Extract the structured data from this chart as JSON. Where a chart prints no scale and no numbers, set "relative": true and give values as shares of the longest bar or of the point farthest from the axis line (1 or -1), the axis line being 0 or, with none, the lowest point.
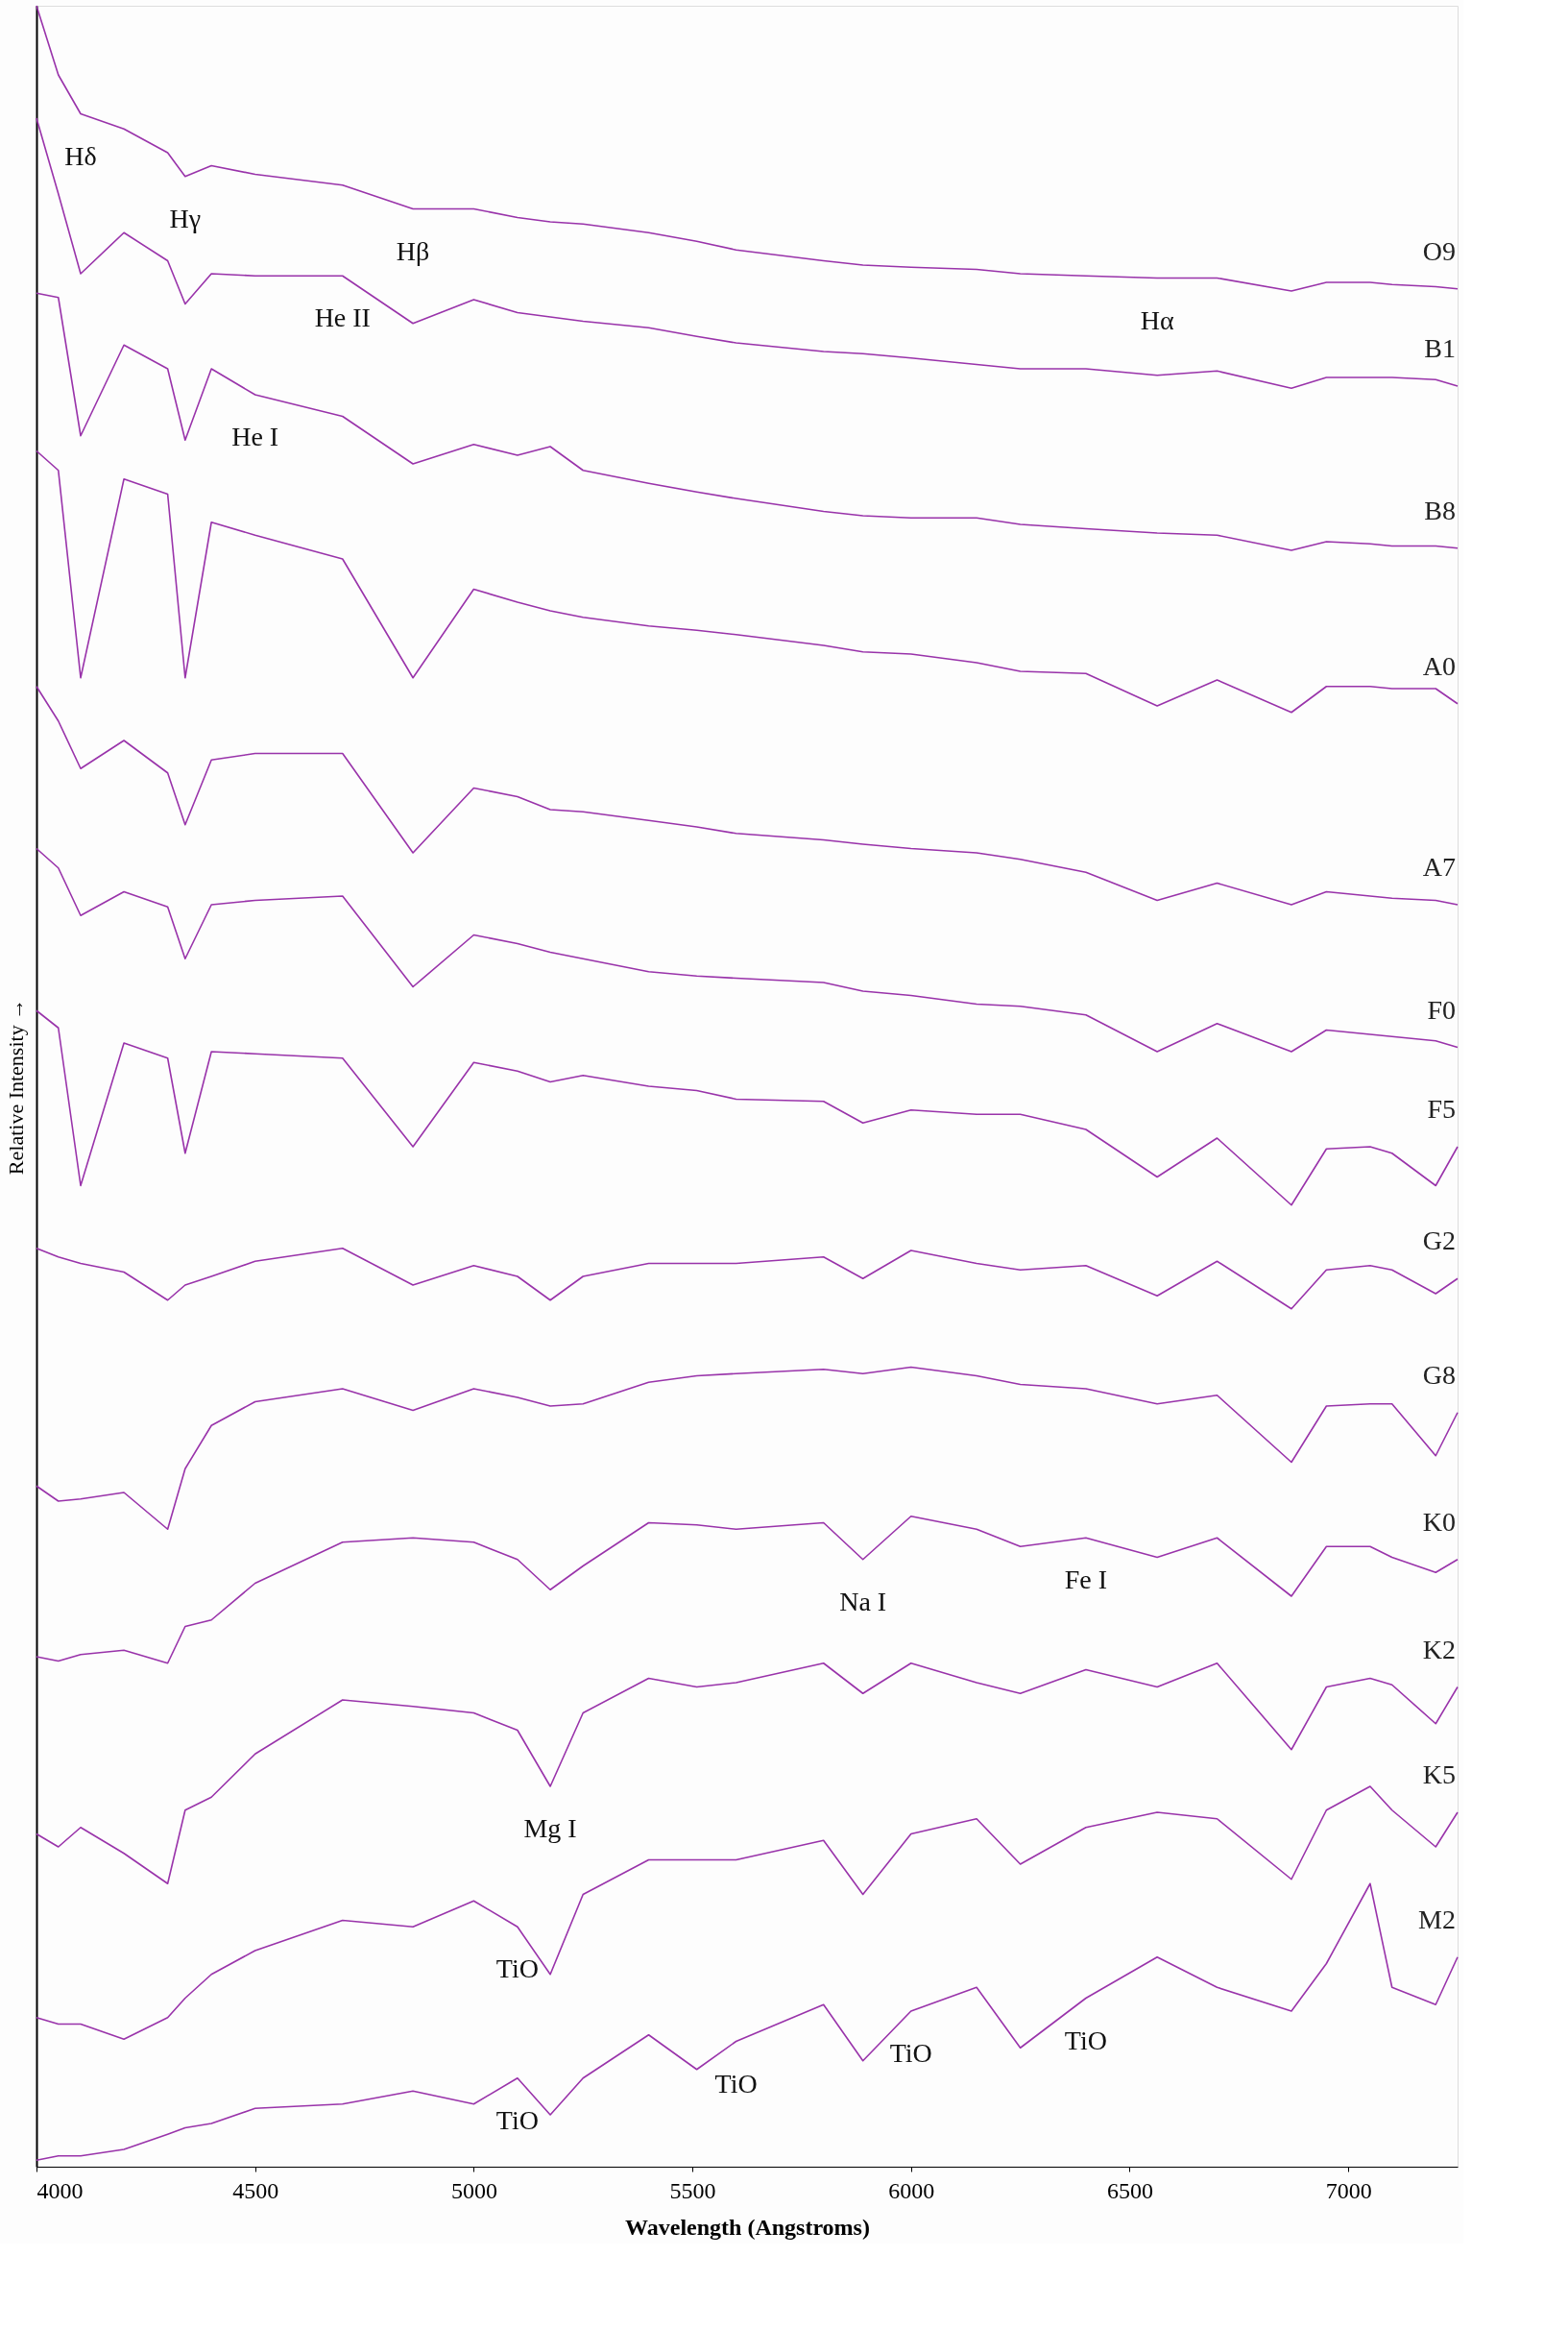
{
  "chart_data": {
    "type": "line",
    "relative": true,
    "xlabel": "Wavelength (Angstroms)",
    "ylabel": "Relative Intensity →",
    "x": [
      4000,
      4050,
      4101,
      4200,
      4300,
      4340,
      4400,
      4500,
      4700,
      4861,
      5000,
      5100,
      5175,
      5250,
      5400,
      5510,
      5600,
      5800,
      5890,
      6000,
      6150,
      6250,
      6400,
      6563,
      6700,
      6870,
      6950,
      7050,
      7100,
      7200,
      7250
    ],
    "xlim": [
      4000,
      7250
    ],
    "xticks": [
      4000,
      4500,
      5000,
      5500,
      6000,
      6500,
      7000
    ],
    "grid": false,
    "legend": false,
    "marker": "none",
    "line_style": "solid",
    "series": [
      {
        "name": "O9",
        "color": "#9933aa",
        "values": [
          1.0,
          0.968,
          0.95,
          0.943,
          0.932,
          0.921,
          0.926,
          0.922,
          0.917,
          0.906,
          0.906,
          0.902,
          0.9,
          0.899,
          0.895,
          0.891,
          0.887,
          0.882,
          0.88,
          0.879,
          0.878,
          0.876,
          0.875,
          0.874,
          0.874,
          0.868,
          0.872,
          0.872,
          0.871,
          0.87,
          0.869
        ]
      },
      {
        "name": "B1",
        "color": "#9933aa",
        "values": [
          0.948,
          0.913,
          0.876,
          0.895,
          0.882,
          0.862,
          0.876,
          0.875,
          0.875,
          0.853,
          0.864,
          0.858,
          0.856,
          0.854,
          0.851,
          0.847,
          0.844,
          0.84,
          0.839,
          0.837,
          0.834,
          0.832,
          0.832,
          0.829,
          0.831,
          0.823,
          0.828,
          0.828,
          0.828,
          0.827,
          0.824
        ]
      },
      {
        "name": "B8",
        "color": "#9933aa",
        "values": [
          0.867,
          0.865,
          0.801,
          0.843,
          0.832,
          0.799,
          0.832,
          0.82,
          0.81,
          0.788,
          0.797,
          0.792,
          0.796,
          0.785,
          0.779,
          0.775,
          0.772,
          0.766,
          0.764,
          0.763,
          0.763,
          0.76,
          0.758,
          0.756,
          0.755,
          0.748,
          0.752,
          0.751,
          0.75,
          0.75,
          0.749
        ]
      },
      {
        "name": "A0",
        "color": "#9933aa",
        "values": [
          0.794,
          0.785,
          0.689,
          0.781,
          0.774,
          0.689,
          0.761,
          0.755,
          0.744,
          0.689,
          0.73,
          0.724,
          0.72,
          0.717,
          0.713,
          0.711,
          0.709,
          0.704,
          0.701,
          0.7,
          0.696,
          0.692,
          0.691,
          0.676,
          0.688,
          0.673,
          0.685,
          0.685,
          0.684,
          0.684,
          0.677
        ]
      },
      {
        "name": "A7",
        "color": "#9933aa",
        "values": [
          0.685,
          0.669,
          0.647,
          0.66,
          0.645,
          0.621,
          0.651,
          0.654,
          0.654,
          0.608,
          0.638,
          0.634,
          0.628,
          0.627,
          0.623,
          0.62,
          0.617,
          0.614,
          0.612,
          0.61,
          0.608,
          0.605,
          0.599,
          0.586,
          0.594,
          0.584,
          0.59,
          0.588,
          0.587,
          0.586,
          0.584
        ]
      },
      {
        "name": "F0",
        "color": "#9933aa",
        "values": [
          0.61,
          0.601,
          0.579,
          0.59,
          0.583,
          0.559,
          0.584,
          0.586,
          0.588,
          0.546,
          0.57,
          0.566,
          0.562,
          0.559,
          0.553,
          0.551,
          0.55,
          0.548,
          0.544,
          0.542,
          0.538,
          0.537,
          0.533,
          0.516,
          0.529,
          0.516,
          0.526,
          0.524,
          0.523,
          0.521,
          0.518
        ]
      },
      {
        "name": "F5",
        "color": "#9933aa",
        "values": [
          0.535,
          0.527,
          0.454,
          0.52,
          0.513,
          0.469,
          0.516,
          0.515,
          0.513,
          0.472,
          0.511,
          0.507,
          0.502,
          0.505,
          0.5,
          0.498,
          0.494,
          0.493,
          0.483,
          0.489,
          0.487,
          0.487,
          0.48,
          0.458,
          0.476,
          0.445,
          0.471,
          0.472,
          0.469,
          0.454,
          0.472
        ]
      },
      {
        "name": "G2",
        "color": "#9933aa",
        "values": [
          0.425,
          0.421,
          0.418,
          0.414,
          0.401,
          0.408,
          0.412,
          0.419,
          0.425,
          0.408,
          0.417,
          0.412,
          0.401,
          0.412,
          0.418,
          0.418,
          0.418,
          0.421,
          0.411,
          0.424,
          0.418,
          0.415,
          0.417,
          0.403,
          0.419,
          0.397,
          0.415,
          0.417,
          0.415,
          0.404,
          0.411
        ]
      },
      {
        "name": "G8",
        "color": "#9933aa",
        "values": [
          0.315,
          0.308,
          0.309,
          0.312,
          0.295,
          0.323,
          0.343,
          0.354,
          0.36,
          0.35,
          0.36,
          0.356,
          0.352,
          0.353,
          0.363,
          0.366,
          0.367,
          0.369,
          0.367,
          0.37,
          0.366,
          0.362,
          0.36,
          0.353,
          0.357,
          0.326,
          0.352,
          0.353,
          0.353,
          0.329,
          0.349
        ]
      },
      {
        "name": "K0",
        "color": "#9933aa",
        "values": [
          0.236,
          0.234,
          0.237,
          0.239,
          0.233,
          0.25,
          0.253,
          0.27,
          0.289,
          0.291,
          0.289,
          0.281,
          0.267,
          0.278,
          0.298,
          0.297,
          0.295,
          0.298,
          0.281,
          0.301,
          0.295,
          0.287,
          0.291,
          0.282,
          0.291,
          0.264,
          0.287,
          0.287,
          0.282,
          0.275,
          0.281
        ]
      },
      {
        "name": "K2",
        "color": "#9933aa",
        "values": [
          0.154,
          0.148,
          0.157,
          0.145,
          0.131,
          0.165,
          0.171,
          0.191,
          0.216,
          0.213,
          0.21,
          0.202,
          0.176,
          0.21,
          0.226,
          0.222,
          0.224,
          0.233,
          0.219,
          0.233,
          0.224,
          0.219,
          0.23,
          0.222,
          0.233,
          0.193,
          0.222,
          0.226,
          0.223,
          0.205,
          0.222
        ]
      },
      {
        "name": "K5",
        "color": "#9933aa",
        "values": [
          0.069,
          0.066,
          0.066,
          0.059,
          0.069,
          0.078,
          0.089,
          0.1,
          0.114,
          0.111,
          0.123,
          0.111,
          0.089,
          0.126,
          0.142,
          0.142,
          0.142,
          0.151,
          0.126,
          0.154,
          0.161,
          0.14,
          0.157,
          0.164,
          0.161,
          0.133,
          0.165,
          0.176,
          0.165,
          0.148,
          0.164
        ]
      },
      {
        "name": "M2",
        "color": "#9933aa",
        "values": [
          0.003,
          0.005,
          0.005,
          0.008,
          0.015,
          0.018,
          0.02,
          0.027,
          0.029,
          0.035,
          0.029,
          0.041,
          0.024,
          0.041,
          0.061,
          0.045,
          0.058,
          0.075,
          0.049,
          0.072,
          0.083,
          0.055,
          0.078,
          0.097,
          0.083,
          0.072,
          0.094,
          0.131,
          0.083,
          0.075,
          0.097
        ]
      }
    ],
    "annotations": [
      {
        "text": "Hδ",
        "x": 4101,
        "y": 0.95
      },
      {
        "text": "Hγ",
        "x": 4340,
        "y": 0.921
      },
      {
        "text": "Hβ",
        "x": 4861,
        "y": 0.906
      },
      {
        "text": "Hα",
        "x": 6563,
        "y": 0.874
      },
      {
        "text": "He II",
        "x": 4700,
        "y": 0.875
      },
      {
        "text": "He I",
        "x": 4500,
        "y": 0.82
      },
      {
        "text": "Fe I",
        "x": 6400,
        "y": 0.291
      },
      {
        "text": "Na I",
        "x": 5890,
        "y": 0.281
      },
      {
        "text": "Mg I",
        "x": 5175,
        "y": 0.176
      },
      {
        "text": "TiO",
        "x": 5100,
        "y": 0.111
      },
      {
        "text": "TiO",
        "x": 5100,
        "y": 0.041
      },
      {
        "text": "TiO",
        "x": 5600,
        "y": 0.058
      },
      {
        "text": "TiO",
        "x": 6000,
        "y": 0.072
      },
      {
        "text": "TiO",
        "x": 6400,
        "y": 0.078
      }
    ]
  }
}
